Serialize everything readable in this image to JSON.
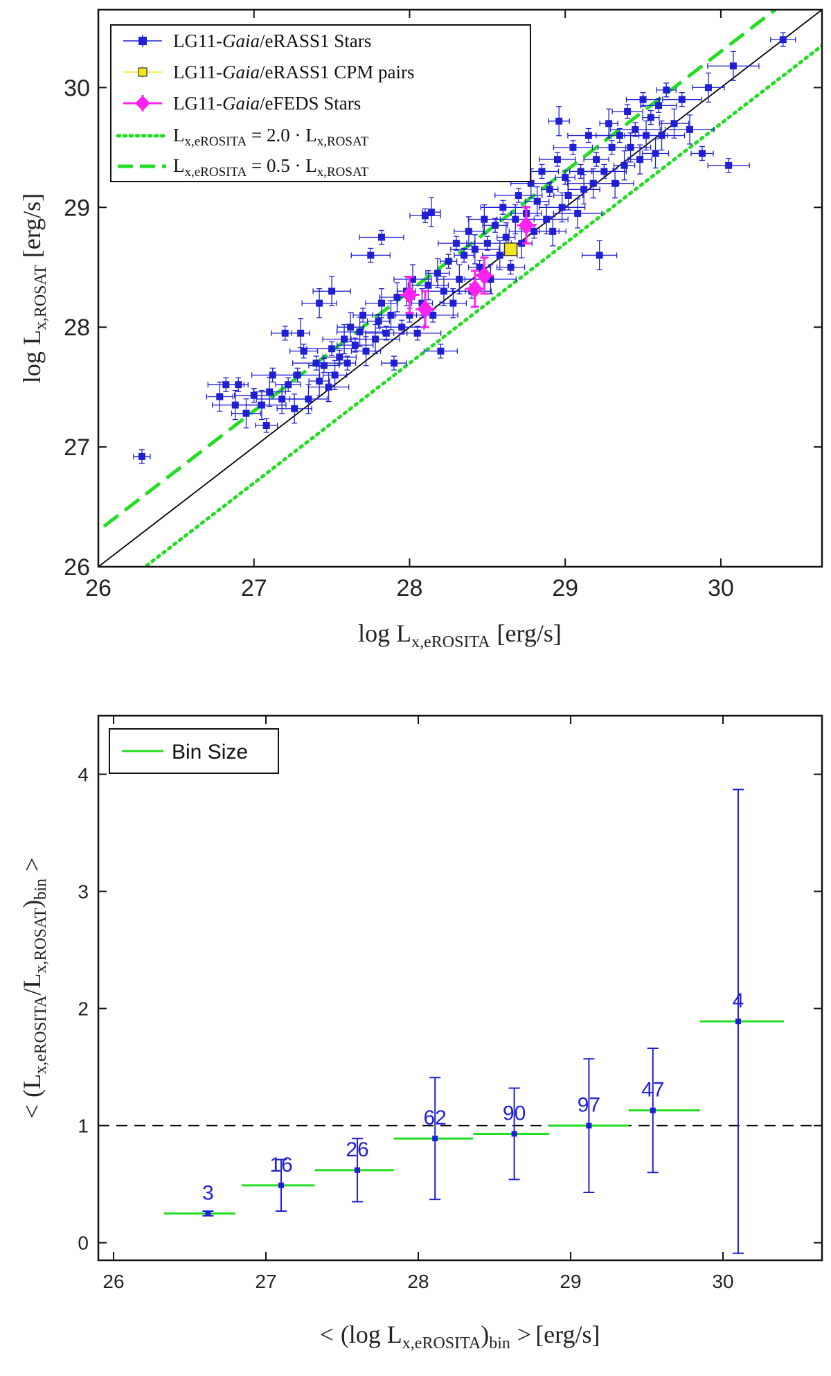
{
  "chart_data": [
    {
      "type": "scatter",
      "xlabel": "log L_x,eROSITA [erg/s]",
      "ylabel": "log L_x,ROSAT [erg/s]",
      "xlim": [
        26,
        30.65
      ],
      "ylim": [
        26,
        30.65
      ],
      "xticks": [
        "26",
        "27",
        "28",
        "29",
        "30"
      ],
      "yticks": [
        "26",
        "27",
        "28",
        "29",
        "30"
      ],
      "legend_position": "top-left",
      "axis_labels": {
        "x_main": "log L",
        "x_sub": "x,eROSITA",
        "x_unit": "[erg/s]",
        "y_main": "log L",
        "y_sub": "x,ROSAT",
        "y_unit": "[erg/s]"
      },
      "legend": [
        {
          "pre": "LG11-",
          "em": "Gaia",
          "post": "/eRASS1 Stars"
        },
        {
          "pre": "LG11-",
          "em": "Gaia",
          "post": "/eRASS1 CPM pairs"
        },
        {
          "pre": "LG11-",
          "em": "Gaia",
          "post": "/eFEDS Stars"
        },
        {
          "lhs": "L",
          "lhs_sub": "x,eROSITA",
          "mid": " = 2.0 · L",
          "rhs_sub": "x,ROSAT"
        },
        {
          "lhs": "L",
          "lhs_sub": "x,eROSITA",
          "mid": " = 0.5 · L",
          "rhs_sub": "x,ROSAT"
        }
      ],
      "colors": {
        "erass": "#1f1fd6",
        "cpm": "#f5e51c",
        "efeds": "#ff22ee",
        "ratio_lines": "#22dd22",
        "identity": "#000000"
      },
      "ratio_lines": [
        {
          "label": "2.0",
          "slope": 1,
          "offset": -0.301,
          "style": "dotted"
        },
        {
          "label": "0.5",
          "slope": 1,
          "offset": 0.301,
          "style": "dashed"
        }
      ],
      "series": [
        {
          "name": "LG11-Gaia/eRASS1 Stars",
          "points": [
            [
              26.28,
              26.92
            ],
            [
              26.78,
              27.42
            ],
            [
              26.82,
              27.52
            ],
            [
              26.88,
              27.35
            ],
            [
              26.9,
              27.52
            ],
            [
              26.95,
              27.28
            ],
            [
              27.0,
              27.43
            ],
            [
              27.05,
              27.35
            ],
            [
              27.08,
              27.18
            ],
            [
              27.1,
              27.46
            ],
            [
              27.12,
              27.6
            ],
            [
              27.18,
              27.4
            ],
            [
              27.22,
              27.52
            ],
            [
              27.26,
              27.32
            ],
            [
              27.28,
              27.6
            ],
            [
              27.3,
              27.95
            ],
            [
              27.32,
              27.8
            ],
            [
              27.35,
              27.4
            ],
            [
              27.4,
              27.7
            ],
            [
              27.42,
              27.55
            ],
            [
              27.45,
              27.68
            ],
            [
              27.48,
              27.5
            ],
            [
              27.5,
              27.82
            ],
            [
              27.52,
              27.6
            ],
            [
              27.55,
              27.75
            ],
            [
              27.58,
              27.9
            ],
            [
              27.6,
              27.7
            ],
            [
              27.62,
              28.0
            ],
            [
              27.65,
              27.85
            ],
            [
              27.68,
              27.96
            ],
            [
              27.7,
              28.1
            ],
            [
              27.72,
              27.8
            ],
            [
              27.75,
              28.6
            ],
            [
              27.78,
              27.9
            ],
            [
              27.8,
              28.05
            ],
            [
              27.82,
              28.2
            ],
            [
              27.85,
              27.95
            ],
            [
              27.88,
              28.1
            ],
            [
              27.9,
              27.7
            ],
            [
              27.92,
              28.25
            ],
            [
              27.95,
              28.0
            ],
            [
              27.98,
              28.3
            ],
            [
              28.0,
              28.1
            ],
            [
              28.02,
              28.4
            ],
            [
              28.05,
              27.95
            ],
            [
              28.08,
              28.2
            ],
            [
              28.1,
              28.93
            ],
            [
              28.12,
              28.35
            ],
            [
              28.15,
              28.1
            ],
            [
              28.18,
              28.45
            ],
            [
              28.2,
              27.8
            ],
            [
              28.22,
              28.3
            ],
            [
              28.25,
              28.55
            ],
            [
              28.28,
              28.2
            ],
            [
              28.3,
              28.7
            ],
            [
              28.32,
              28.4
            ],
            [
              28.35,
              28.6
            ],
            [
              28.38,
              28.8
            ],
            [
              28.4,
              28.3
            ],
            [
              28.42,
              28.65
            ],
            [
              28.45,
              28.5
            ],
            [
              28.48,
              28.9
            ],
            [
              28.5,
              28.7
            ],
            [
              28.52,
              28.4
            ],
            [
              28.55,
              28.85
            ],
            [
              28.58,
              28.6
            ],
            [
              28.6,
              29.0
            ],
            [
              28.62,
              28.75
            ],
            [
              28.65,
              28.5
            ],
            [
              28.68,
              28.9
            ],
            [
              28.7,
              29.1
            ],
            [
              28.72,
              28.7
            ],
            [
              28.75,
              28.95
            ],
            [
              28.78,
              29.2
            ],
            [
              28.8,
              28.8
            ],
            [
              28.82,
              29.05
            ],
            [
              28.85,
              29.3
            ],
            [
              28.88,
              28.9
            ],
            [
              28.9,
              29.15
            ],
            [
              28.92,
              28.8
            ],
            [
              28.95,
              29.4
            ],
            [
              28.98,
              29.0
            ],
            [
              29.0,
              29.25
            ],
            [
              29.02,
              29.1
            ],
            [
              29.05,
              29.5
            ],
            [
              29.08,
              28.95
            ],
            [
              29.1,
              29.3
            ],
            [
              29.12,
              29.15
            ],
            [
              29.15,
              29.6
            ],
            [
              29.18,
              29.2
            ],
            [
              29.2,
              29.4
            ],
            [
              29.22,
              28.6
            ],
            [
              29.25,
              29.3
            ],
            [
              29.28,
              29.7
            ],
            [
              29.3,
              29.5
            ],
            [
              29.32,
              29.2
            ],
            [
              29.35,
              29.6
            ],
            [
              29.38,
              29.35
            ],
            [
              29.4,
              29.8
            ],
            [
              29.42,
              29.5
            ],
            [
              29.45,
              29.65
            ],
            [
              29.48,
              29.4
            ],
            [
              29.5,
              29.9
            ],
            [
              29.52,
              29.6
            ],
            [
              29.55,
              29.75
            ],
            [
              29.58,
              29.45
            ],
            [
              29.6,
              29.85
            ],
            [
              29.62,
              29.6
            ],
            [
              29.65,
              29.98
            ],
            [
              29.7,
              29.7
            ],
            [
              29.75,
              29.9
            ],
            [
              29.8,
              29.65
            ],
            [
              29.88,
              29.45
            ],
            [
              29.92,
              30.0
            ],
            [
              30.05,
              29.35
            ],
            [
              30.08,
              30.18
            ],
            [
              30.4,
              30.4
            ],
            [
              27.42,
              28.2
            ],
            [
              27.82,
              28.75
            ],
            [
              28.14,
              28.96
            ],
            [
              27.2,
              27.95
            ],
            [
              27.5,
              28.3
            ],
            [
              28.56,
              29.35
            ],
            [
              28.96,
              29.72
            ]
          ]
        },
        {
          "name": "LG11-Gaia/eRASS1 CPM pairs",
          "points": [
            [
              28.65,
              28.65
            ]
          ]
        },
        {
          "name": "LG11-Gaia/eFEDS Stars",
          "points": [
            [
              28.0,
              28.27
            ],
            [
              28.1,
              28.15
            ],
            [
              28.42,
              28.32
            ],
            [
              28.48,
              28.43
            ],
            [
              28.75,
              28.85
            ]
          ]
        }
      ]
    },
    {
      "type": "errorbar",
      "xlabel": "< (log L_x,eROSITA)_bin > [erg/s]",
      "ylabel": "< (L_x,eROSITA / L_x,ROSAT)_bin >",
      "xlim": [
        25.9,
        30.65
      ],
      "ylim": [
        -0.15,
        4.5
      ],
      "xticks": [
        "26",
        "27",
        "28",
        "29",
        "30"
      ],
      "yticks": [
        "0",
        "1",
        "2",
        "3",
        "4"
      ],
      "reference_line": 1,
      "legend_position": "top-left",
      "legend": [
        "Bin Size"
      ],
      "axis_labels": {
        "x_lt": "<",
        "x_main": "(log L",
        "x_sub": "x,eROSITA",
        "x_close": ")",
        "x_sub2": "bin",
        "x_gt": ">",
        "x_unit": "[erg/s]",
        "y_lt": "<",
        "y_main": "(L",
        "y_sub1": "x,eROSITA",
        "y_slash": "/L",
        "y_sub2": "x,ROSAT",
        "y_close": ")",
        "y_sub3": "bin",
        "y_gt": ">"
      },
      "colors": {
        "points": "#1f1fd6",
        "bins": "#22dd22",
        "reference": "#000000"
      },
      "bins": [
        {
          "x": 26.62,
          "y": 0.25,
          "err_low": 0.02,
          "err_high": 0.02,
          "bin_min": 26.33,
          "bin_max": 26.8,
          "count": "3"
        },
        {
          "x": 27.1,
          "y": 0.49,
          "err_low": 0.22,
          "err_high": 0.22,
          "bin_min": 26.84,
          "bin_max": 27.32,
          "count": "16"
        },
        {
          "x": 27.6,
          "y": 0.62,
          "err_low": 0.27,
          "err_high": 0.27,
          "bin_min": 27.32,
          "bin_max": 27.84,
          "count": "26"
        },
        {
          "x": 28.11,
          "y": 0.89,
          "err_low": 0.52,
          "err_high": 0.52,
          "bin_min": 27.84,
          "bin_max": 28.36,
          "count": "62"
        },
        {
          "x": 28.63,
          "y": 0.93,
          "err_low": 0.39,
          "err_high": 0.39,
          "bin_min": 28.36,
          "bin_max": 28.86,
          "count": "90"
        },
        {
          "x": 29.12,
          "y": 1.0,
          "err_low": 0.57,
          "err_high": 0.57,
          "bin_min": 28.86,
          "bin_max": 29.38,
          "count": "97"
        },
        {
          "x": 29.54,
          "y": 1.13,
          "err_low": 0.53,
          "err_high": 0.53,
          "bin_min": 29.38,
          "bin_max": 29.85,
          "count": "47"
        },
        {
          "x": 30.1,
          "y": 1.89,
          "err_low": 1.98,
          "err_high": 1.98,
          "bin_min": 29.85,
          "bin_max": 30.4,
          "count": "4"
        }
      ]
    }
  ]
}
